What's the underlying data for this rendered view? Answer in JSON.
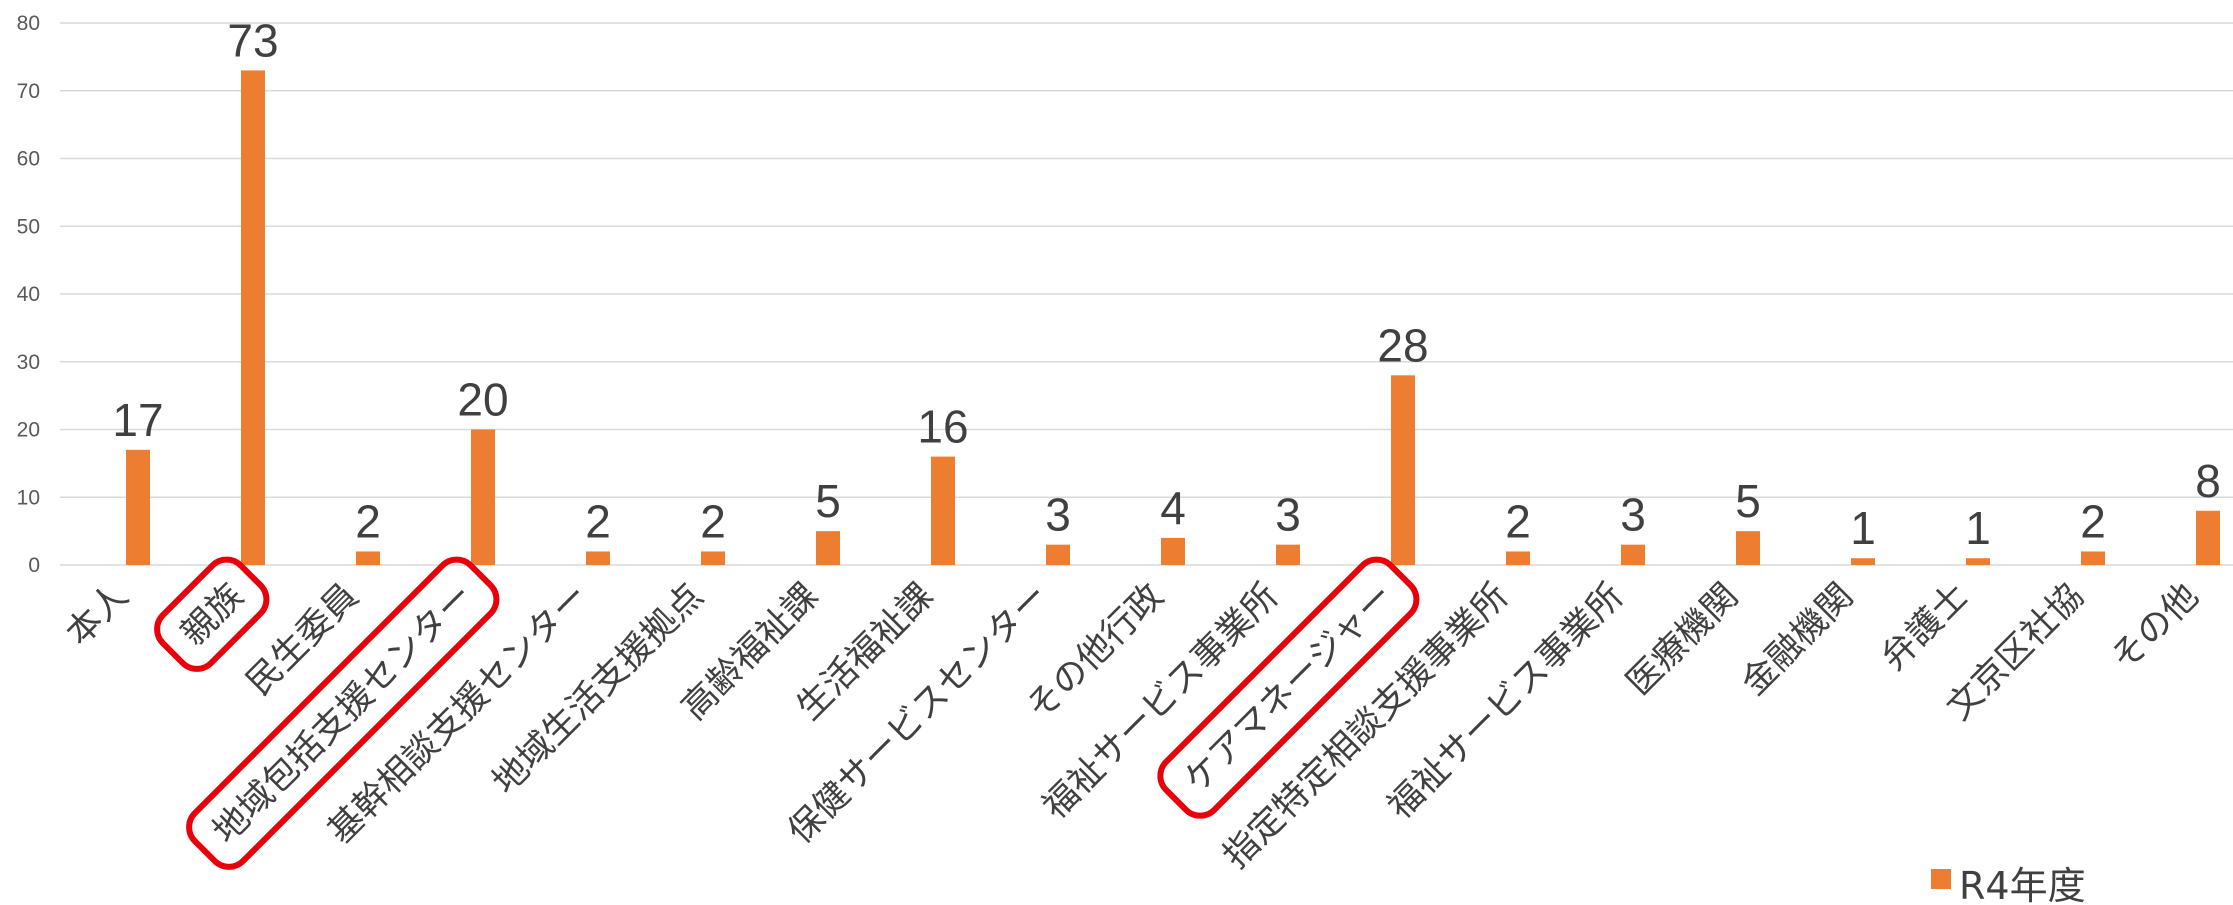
{
  "chart_data": {
    "type": "bar",
    "categories": [
      "本人",
      "親族",
      "民生委員",
      "地域包括支援センター",
      "基幹相談支援センター",
      "地域生活支援拠点",
      "高齢福祉課",
      "生活福祉課",
      "保健サービスセンター",
      "その他行政",
      "福祉サービス事業所",
      "ケアマネージャー",
      "指定特定相談支援事業所",
      "福祉サービス事業所",
      "医療機関",
      "金融機関",
      "弁護士",
      "文京区社協",
      "その他"
    ],
    "series": [
      {
        "name": "R4年度",
        "values": [
          17,
          73,
          2,
          20,
          2,
          2,
          5,
          16,
          3,
          4,
          3,
          28,
          2,
          3,
          5,
          1,
          1,
          2,
          8
        ]
      }
    ],
    "y_ticks": [
      "0",
      "10",
      "20",
      "30",
      "40",
      "50",
      "60",
      "70",
      "80"
    ],
    "ylim": [
      0,
      80
    ],
    "grid": true,
    "legend": "bottom-right",
    "highlighted_categories": [
      "親族",
      "地域包括支援センター",
      "ケアマネージャー"
    ],
    "colors": {
      "bar": "#ED7D31",
      "grid": "#D9D9D9",
      "highlight": "#E8000B"
    }
  }
}
